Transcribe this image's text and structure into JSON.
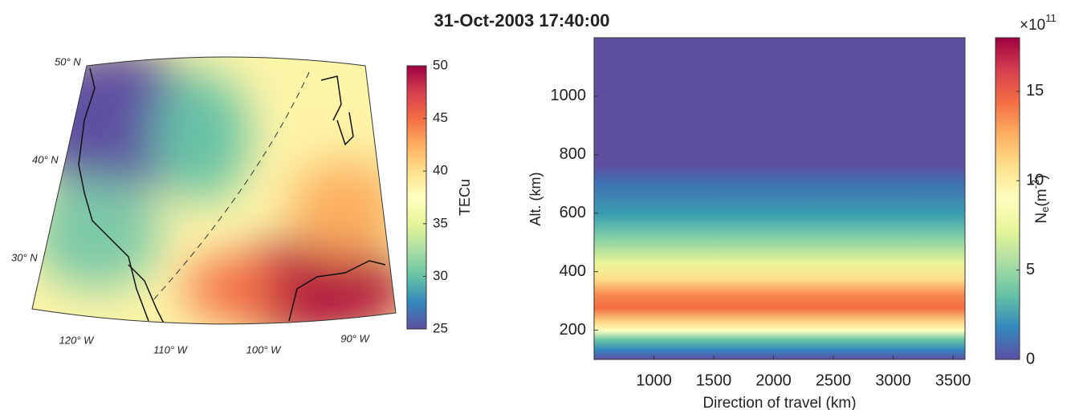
{
  "title": "31-Oct-2003 17:40:00",
  "chart_data": [
    {
      "type": "map",
      "lat_ticks": [
        {
          "value": 50,
          "label": "50° N"
        },
        {
          "value": 40,
          "label": "40° N"
        },
        {
          "value": 30,
          "label": "30° N"
        }
      ],
      "lon_ticks": [
        {
          "value": -120,
          "label": "120° W"
        },
        {
          "value": -110,
          "label": "110° W"
        },
        {
          "value": -100,
          "label": "100° W"
        },
        {
          "value": -90,
          "label": "90° W"
        }
      ],
      "colorbar": {
        "label": "TECu",
        "lim": [
          25,
          50
        ],
        "ticks": [
          25,
          30,
          35,
          40,
          45,
          50
        ]
      }
    },
    {
      "type": "contour",
      "xlabel": "Direction of travel (km)",
      "ylabel": "Alt. (km)",
      "xlim": [
        500,
        3600
      ],
      "xticks": [
        1000,
        1500,
        2000,
        2500,
        3000,
        3500
      ],
      "ylim": [
        100,
        1200
      ],
      "yticks": [
        200,
        400,
        600,
        800,
        1000
      ],
      "colorbar": {
        "label_parts": [
          "N",
          "e",
          "(m",
          "-3",
          ")"
        ],
        "scale_parts": [
          "×10",
          "11"
        ],
        "lim": [
          0,
          18
        ],
        "ticks": [
          0,
          5,
          10,
          15
        ]
      }
    }
  ]
}
